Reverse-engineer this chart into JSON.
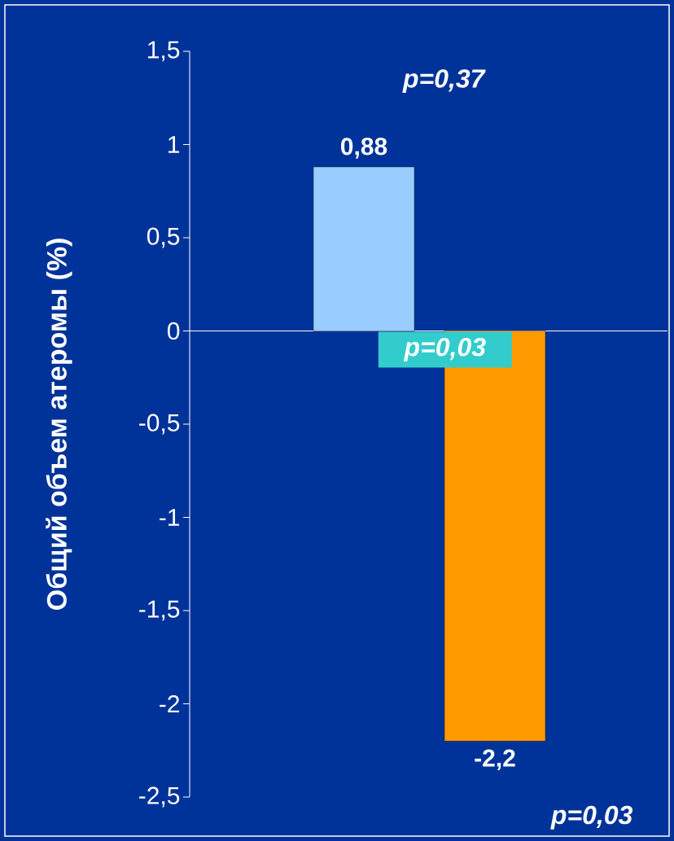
{
  "chart_data": {
    "type": "bar",
    "ylabel": "Общий объем атеромы (%)",
    "categories": [
      null,
      null
    ],
    "values": [
      0.88,
      -2.2
    ],
    "colors": [
      "#99ccff",
      "#ff9900"
    ],
    "value_labels": [
      "0,88",
      "-2,2"
    ],
    "ylim": [
      -2.5,
      1.5
    ],
    "yticks": [
      {
        "value": -2.5,
        "label": "-2,5"
      },
      {
        "value": -2,
        "label": "-2"
      },
      {
        "value": -1.5,
        "label": "-1,5"
      },
      {
        "value": -1,
        "label": "-1"
      },
      {
        "value": -0.5,
        "label": "-0,5"
      },
      0,
      {
        "value": 0.5,
        "label": "0,5"
      },
      1,
      {
        "value": 1.5,
        "label": "1,5"
      }
    ],
    "annotations": [
      "p=0,37",
      "p=0,03",
      "p=0,03"
    ]
  }
}
